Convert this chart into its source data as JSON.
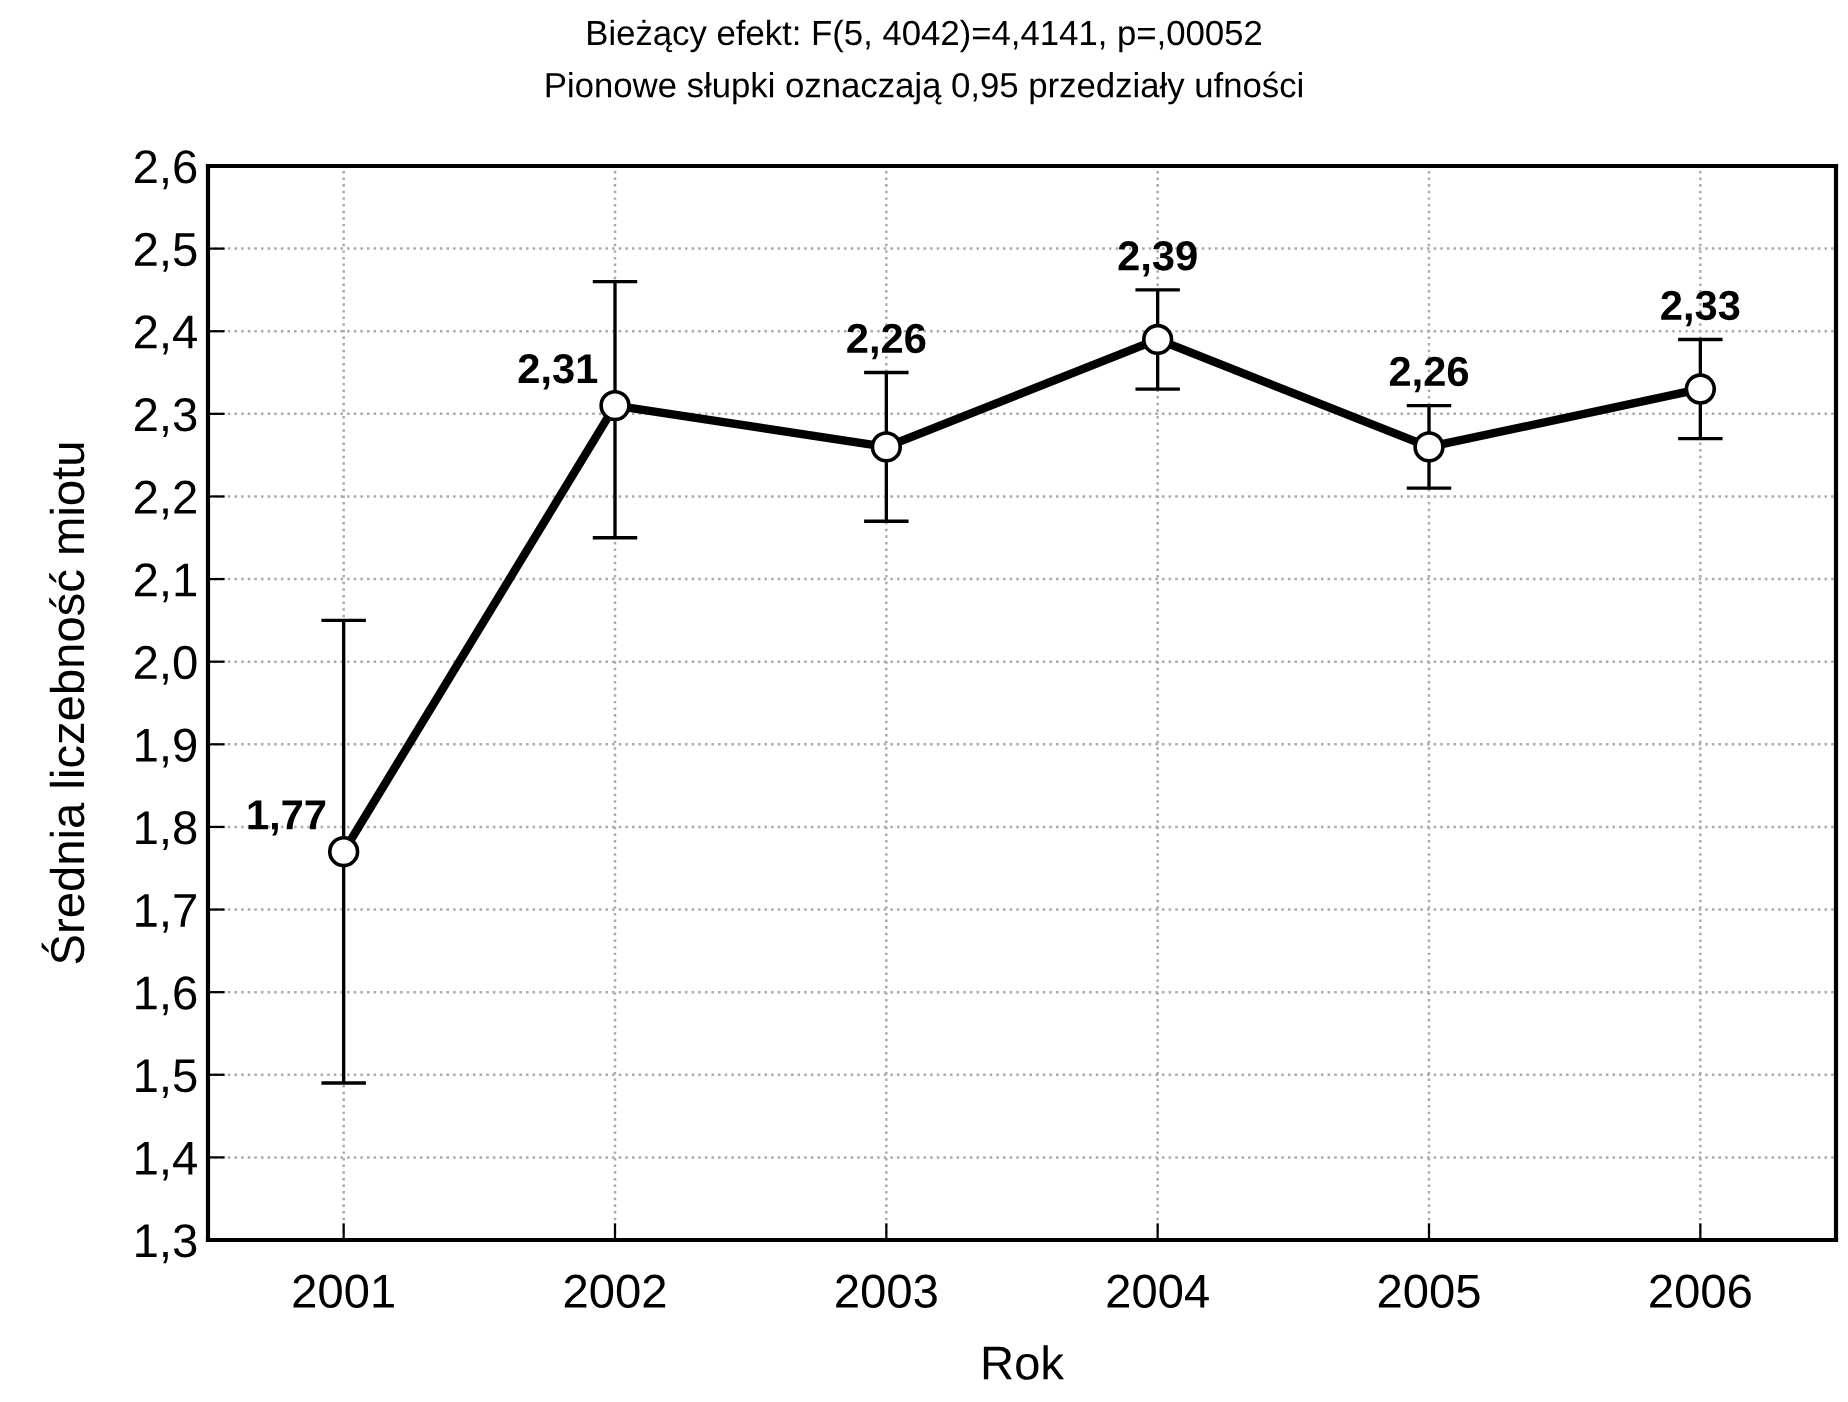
{
  "chart_data": {
    "type": "line",
    "title": "Bieżący efekt: F(5, 4042)=4,4141, p=,00052",
    "subtitle": "Pionowe słupki oznaczają 0,95 przedziały ufności",
    "xlabel": "Rok",
    "ylabel": "Średnia liczebność miotu",
    "categories": [
      "2001",
      "2002",
      "2003",
      "2004",
      "2005",
      "2006"
    ],
    "series": [
      {
        "color": "#000000",
        "values": [
          1.77,
          2.31,
          2.26,
          2.39,
          2.26,
          2.33
        ],
        "value_labels": [
          "1,77",
          "2,31",
          "2,26",
          "2,39",
          "2,26",
          "2,33"
        ],
        "errors": [
          [
            1.49,
            2.05
          ],
          [
            2.15,
            2.46
          ],
          [
            2.17,
            2.35
          ],
          [
            2.33,
            2.45
          ],
          [
            2.21,
            2.31
          ],
          [
            2.27,
            2.39
          ]
        ]
      }
    ],
    "ylim": [
      1.3,
      2.6
    ],
    "yticks": [
      {
        "value": 1.3,
        "label": "1,3"
      },
      {
        "value": 1.4,
        "label": "1,4"
      },
      {
        "value": 1.5,
        "label": "1,5"
      },
      {
        "value": 1.6,
        "label": "1,6"
      },
      {
        "value": 1.7,
        "label": "1,7"
      },
      {
        "value": 1.8,
        "label": "1,8"
      },
      {
        "value": 1.9,
        "label": "1,9"
      },
      {
        "value": 2.0,
        "label": "2,0"
      },
      {
        "value": 2.1,
        "label": "2,1"
      },
      {
        "value": 2.2,
        "label": "2,2"
      },
      {
        "value": 2.3,
        "label": "2,3"
      },
      {
        "value": 2.4,
        "label": "2,4"
      },
      {
        "value": 2.5,
        "label": "2,5"
      },
      {
        "value": 2.6,
        "label": "2,6"
      }
    ],
    "grid": true,
    "marker": "circle",
    "line_style": "solid"
  }
}
